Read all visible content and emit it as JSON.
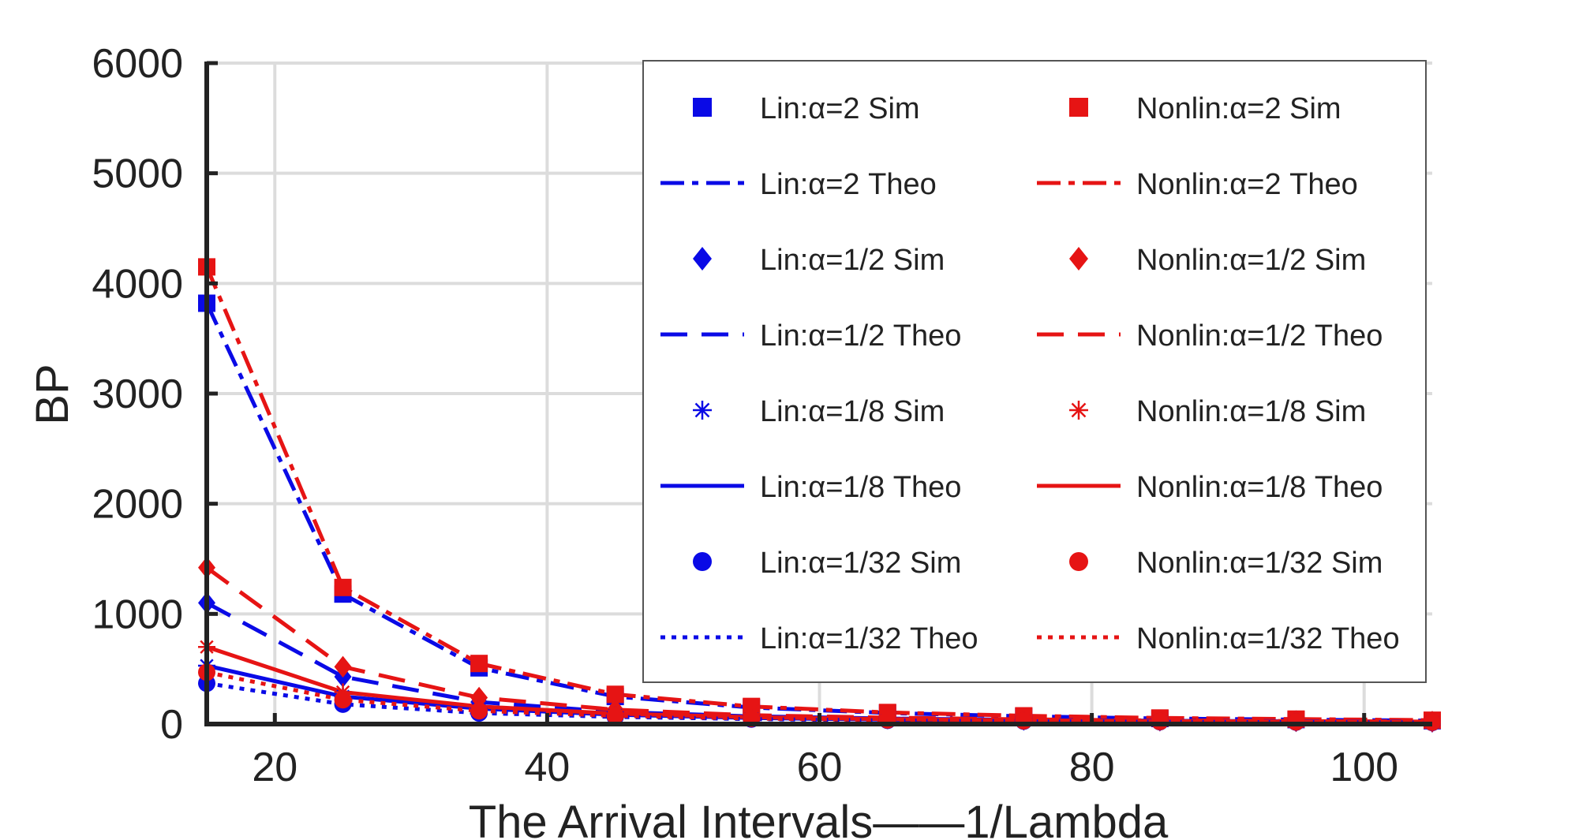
{
  "chart_data": {
    "type": "line",
    "title": "",
    "xlabel": "The Arrival Intervals——1/Lambda",
    "ylabel": "BP",
    "xlim": [
      15,
      105
    ],
    "ylim": [
      0,
      6000
    ],
    "x_ticks": [
      "20",
      "40",
      "60",
      "80",
      "100"
    ],
    "y_ticks": [
      "0",
      "1000",
      "2000",
      "3000",
      "4000",
      "5000",
      "6000"
    ],
    "grid": true,
    "legend_position": "top-right",
    "colors": {
      "lin": "#0a0ae6",
      "nonlin": "#e61414"
    },
    "x": [
      15,
      25,
      35,
      45,
      55,
      65,
      75,
      85,
      95,
      105
    ],
    "series": [
      {
        "name": "Lin:α=2 Sim",
        "color": "#0a0ae6",
        "marker": "square",
        "line": "none",
        "values": [
          3820,
          1180,
          510,
          250,
          150,
          100,
          70,
          50,
          40,
          30
        ]
      },
      {
        "name": "Nonlin:α=2 Sim",
        "color": "#e61414",
        "marker": "square",
        "line": "none",
        "values": [
          4150,
          1240,
          550,
          270,
          160,
          105,
          75,
          55,
          45,
          35
        ]
      },
      {
        "name": "Lin:α=2 Theo",
        "color": "#0a0ae6",
        "marker": "none",
        "line": "dashdot",
        "values": [
          3820,
          1180,
          510,
          250,
          150,
          100,
          70,
          50,
          40,
          30
        ]
      },
      {
        "name": "Nonlin:α=2 Theo",
        "color": "#e61414",
        "marker": "none",
        "line": "dashdot",
        "values": [
          4150,
          1240,
          550,
          270,
          160,
          105,
          75,
          55,
          45,
          35
        ]
      },
      {
        "name": "Lin:α=1/2 Sim",
        "color": "#0a0ae6",
        "marker": "diamond",
        "line": "none",
        "values": [
          1100,
          430,
          200,
          110,
          70,
          50,
          38,
          30,
          25,
          20
        ]
      },
      {
        "name": "Nonlin:α=1/2 Sim",
        "color": "#e61414",
        "marker": "diamond",
        "line": "none",
        "values": [
          1420,
          520,
          240,
          130,
          80,
          58,
          42,
          33,
          27,
          22
        ]
      },
      {
        "name": "Lin:α=1/2 Theo",
        "color": "#0a0ae6",
        "marker": "none",
        "line": "dash",
        "values": [
          1100,
          430,
          200,
          110,
          70,
          50,
          38,
          30,
          25,
          20
        ]
      },
      {
        "name": "Nonlin:α=1/2 Theo",
        "color": "#e61414",
        "marker": "none",
        "line": "dash",
        "values": [
          1420,
          520,
          240,
          130,
          80,
          58,
          42,
          33,
          27,
          22
        ]
      },
      {
        "name": "Lin:α=1/8 Sim",
        "color": "#0a0ae6",
        "marker": "asterisk",
        "line": "none",
        "values": [
          530,
          250,
          140,
          85,
          55,
          40,
          30,
          24,
          20,
          16
        ]
      },
      {
        "name": "Nonlin:α=1/8 Sim",
        "color": "#e61414",
        "marker": "asterisk",
        "line": "none",
        "values": [
          700,
          290,
          160,
          95,
          62,
          45,
          34,
          27,
          22,
          18
        ]
      },
      {
        "name": "Lin:α=1/8 Theo",
        "color": "#0a0ae6",
        "marker": "none",
        "line": "solid",
        "values": [
          530,
          250,
          140,
          85,
          55,
          40,
          30,
          24,
          20,
          16
        ]
      },
      {
        "name": "Nonlin:α=1/8 Theo",
        "color": "#e61414",
        "marker": "none",
        "line": "solid",
        "values": [
          700,
          290,
          160,
          95,
          62,
          45,
          34,
          27,
          22,
          18
        ]
      },
      {
        "name": "Lin:α=1/32 Sim",
        "color": "#0a0ae6",
        "marker": "circle",
        "line": "none",
        "values": [
          370,
          180,
          100,
          65,
          45,
          33,
          26,
          21,
          17,
          14
        ]
      },
      {
        "name": "Nonlin:α=1/32 Sim",
        "color": "#e61414",
        "marker": "circle",
        "line": "none",
        "values": [
          470,
          220,
          120,
          75,
          50,
          37,
          29,
          23,
          19,
          16
        ]
      },
      {
        "name": "Lin:α=1/32 Theo",
        "color": "#0a0ae6",
        "marker": "none",
        "line": "dot",
        "values": [
          370,
          180,
          100,
          65,
          45,
          33,
          26,
          21,
          17,
          14
        ]
      },
      {
        "name": "Nonlin:α=1/32 Theo",
        "color": "#e61414",
        "marker": "none",
        "line": "dot",
        "values": [
          470,
          220,
          120,
          75,
          50,
          37,
          29,
          23,
          19,
          16
        ]
      }
    ]
  }
}
